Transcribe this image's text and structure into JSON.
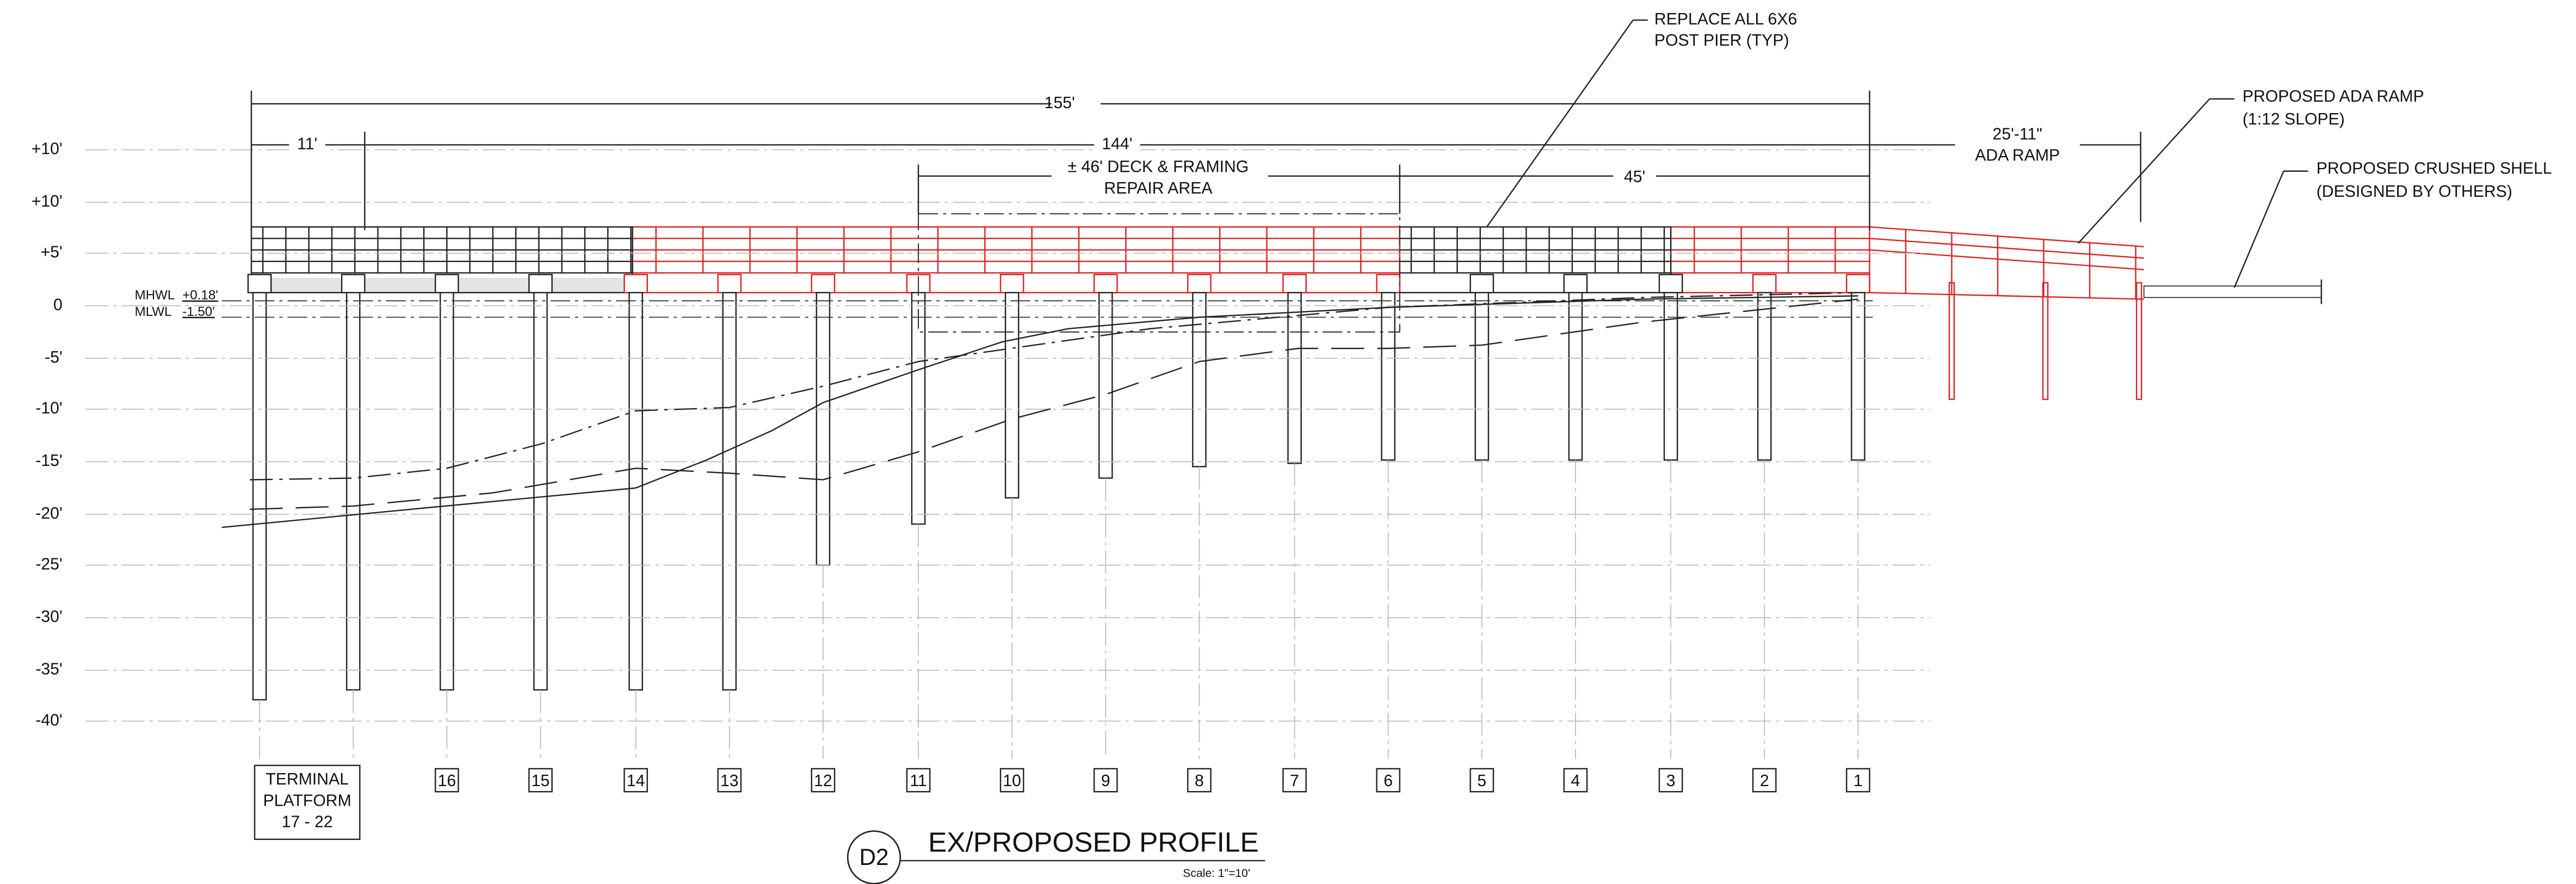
{
  "elevations": [
    "+10'",
    "+10'",
    "+5'",
    "0",
    "-5'",
    "-10'",
    "-15'",
    "-20'",
    "-25'",
    "-30'",
    "-35'",
    "-40'"
  ],
  "tides": [
    {
      "label": "MHWL",
      "value": "+0.18'"
    },
    {
      "label": "MLWL",
      "value": "-1.50'"
    }
  ],
  "dimensions": {
    "overall": "155'",
    "platform": "11'",
    "pier": "144'",
    "repair": [
      "± 46' DECK & FRAMING",
      "REPAIR AREA"
    ],
    "end": "45'",
    "ramp": [
      "25'-11\"",
      "ADA RAMP"
    ]
  },
  "callouts": [
    {
      "lines": [
        "REPLACE ALL 6X6",
        "POST PIER (TYP)"
      ]
    },
    {
      "lines": [
        "PROPOSED ADA RAMP",
        "(1:12 SLOPE)"
      ]
    },
    {
      "lines": [
        "PROPOSED CRUSHED SHELL",
        "(DESIGNED BY OTHERS)"
      ]
    }
  ],
  "piers": [
    "16",
    "15",
    "14",
    "13",
    "12",
    "11",
    "10",
    "9",
    "8",
    "7",
    "6",
    "5",
    "4",
    "3",
    "2",
    "1"
  ],
  "platform": [
    "TERMINAL",
    "PLATFORM",
    "17 - 22"
  ],
  "title": {
    "badge": "D2",
    "text": "EX/PROPOSED PROFILE",
    "scale": "Scale: 1\"=10'"
  }
}
